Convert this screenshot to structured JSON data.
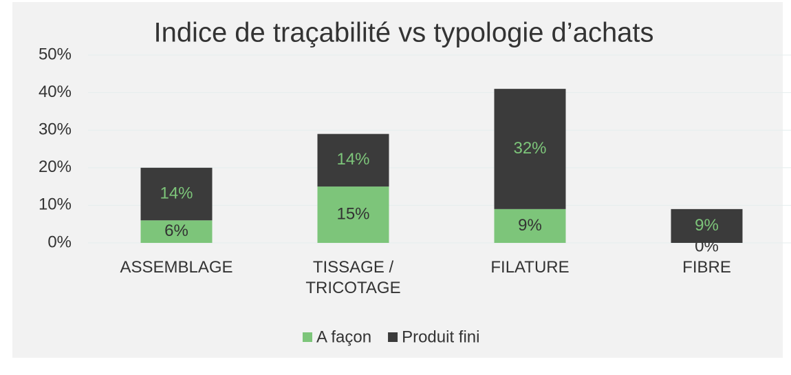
{
  "chart_data": {
    "type": "stacked_bar",
    "title": "Indice de traçabilité vs typologie d’achats",
    "categories": [
      "ASSEMBLAGE",
      "TISSAGE / TRICOTAGE",
      "FILATURE",
      "FIBRE"
    ],
    "series": [
      {
        "name": "A façon",
        "color": "#7dc57a",
        "values": [
          6,
          15,
          9,
          0
        ],
        "value_labels": [
          "6%",
          "15%",
          "9%",
          "0%"
        ],
        "label_color": "#333333"
      },
      {
        "name": "Produit fini",
        "color": "#3b3b3b",
        "values": [
          14,
          14,
          32,
          9
        ],
        "value_labels": [
          "14%",
          "14%",
          "32%",
          "9%"
        ],
        "label_color": "#7dc57a"
      }
    ],
    "ylim": [
      0,
      50
    ],
    "yticks": [
      {
        "value": 0,
        "label": "0%"
      },
      {
        "value": 10,
        "label": "10%"
      },
      {
        "value": 20,
        "label": "20%"
      },
      {
        "value": 30,
        "label": "30%"
      },
      {
        "value": 40,
        "label": "40%"
      },
      {
        "value": 50,
        "label": "50%"
      }
    ],
    "grid": true,
    "legend": "bottom"
  }
}
